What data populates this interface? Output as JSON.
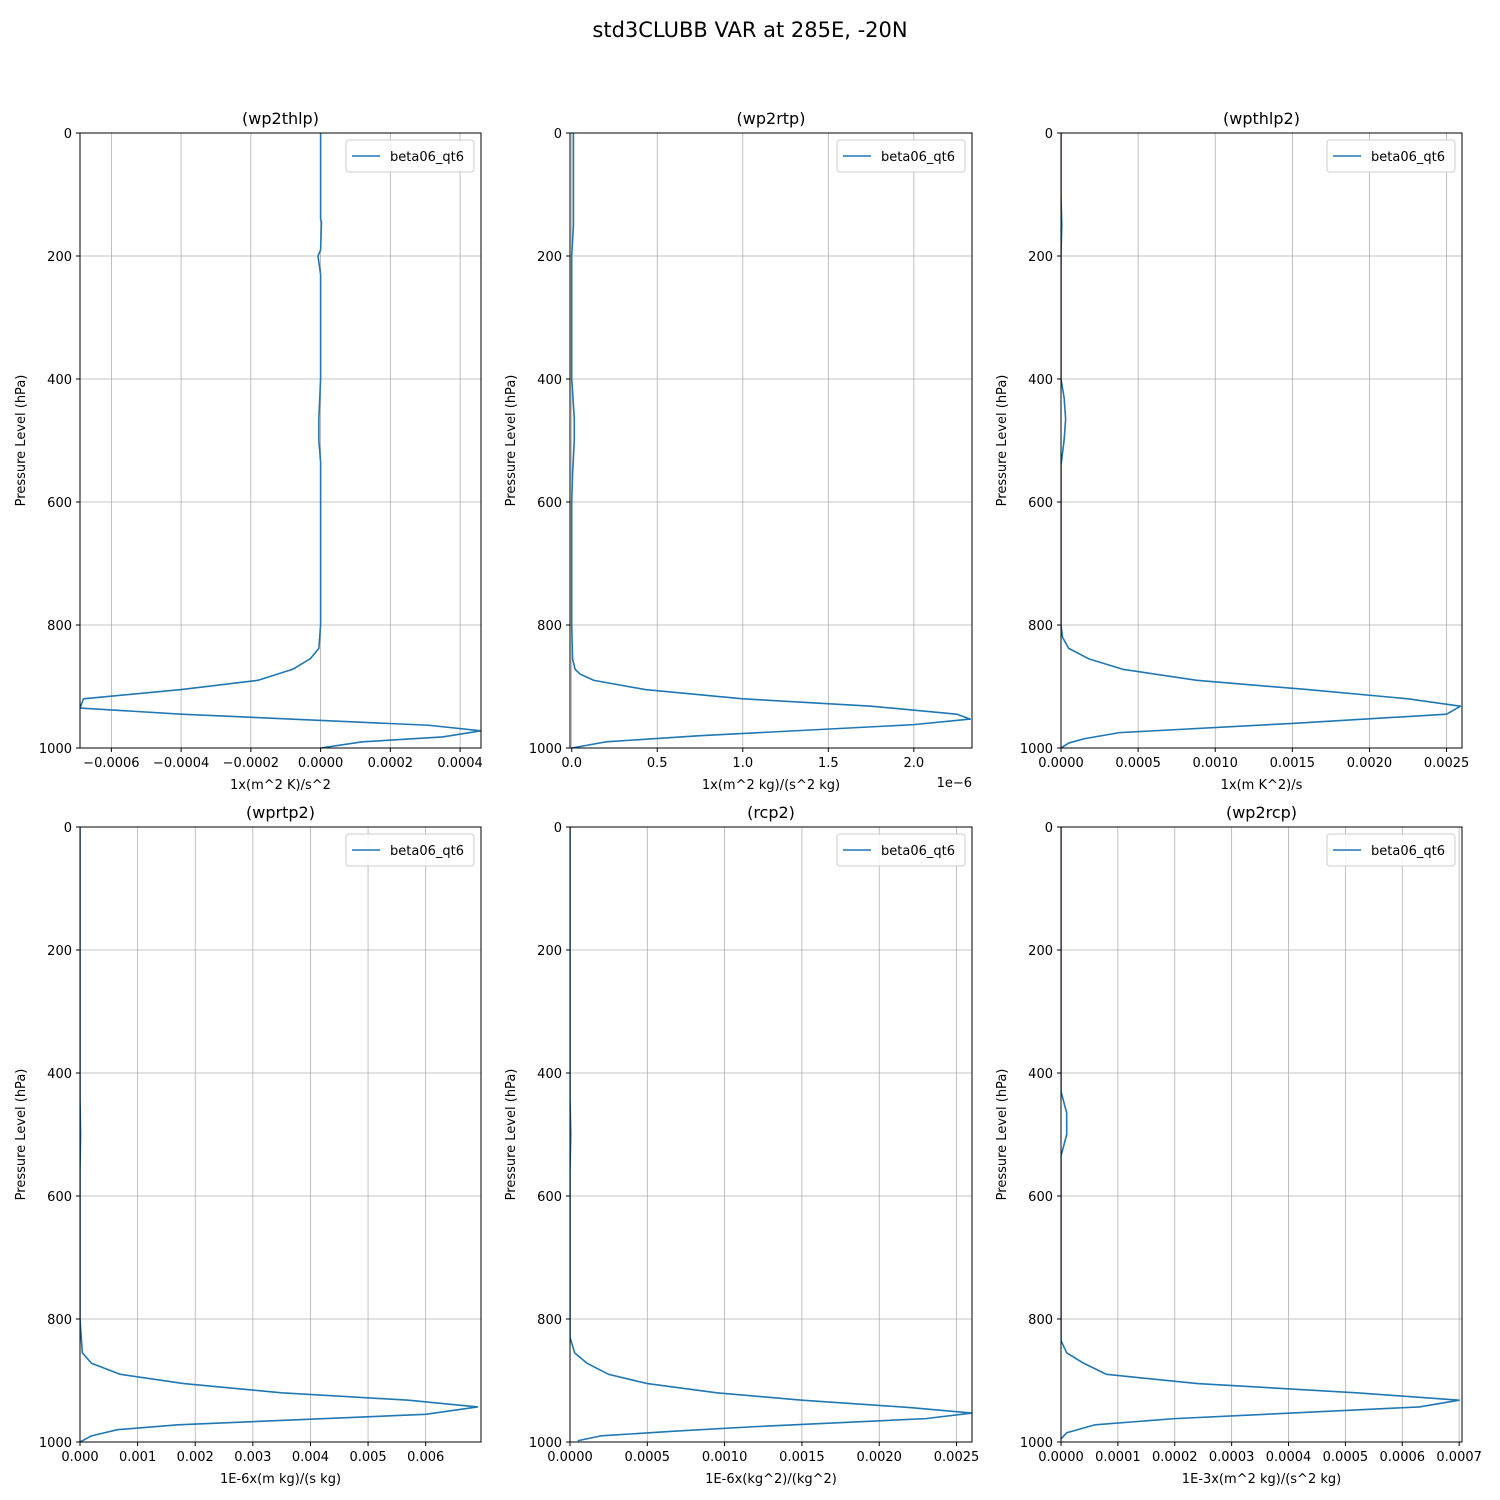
{
  "title": "std3CLUBB VAR at 285E, -20N",
  "chart_data": [
    {
      "type": "line",
      "title": "(wp2thlp)",
      "xlabel": "1x(m^2 K)/s^2",
      "ylabel": "Pressure Level (hPa)",
      "xlim": [
        -0.00069,
        0.00046
      ],
      "ylim": [
        1000,
        0
      ],
      "x_ticks": [
        -0.0006,
        -0.0004,
        -0.0002,
        0.0,
        0.0002,
        0.0004
      ],
      "x_tick_labels": [
        "−0.0006",
        "−0.0004",
        "−0.0002",
        "0.0000",
        "0.0002",
        "0.0004"
      ],
      "y_ticks": [
        0,
        200,
        400,
        600,
        800,
        1000
      ],
      "y_tick_labels": [
        "0",
        "200",
        "400",
        "600",
        "800",
        "1000"
      ],
      "offset_text": "",
      "grid": true,
      "legend": "upper right",
      "series": [
        {
          "name": "beta06_qt6",
          "color": "#1f77b4",
          "x": [
            0.0,
            0.0,
            2.5e-06,
            0.0,
            -7.5e-06,
            0.0,
            0.0,
            0.0,
            -5e-06,
            -5e-06,
            0.0,
            0.0,
            0.0,
            -5e-06,
            -3e-05,
            -8e-05,
            -0.00018,
            -0.0004,
            -0.00068,
            -0.00069,
            -0.0004,
            0.00031,
            0.00046,
            0.00035,
            0.00012,
            0.0
          ],
          "y": [
            0,
            140,
            145,
            190,
            200,
            230,
            300,
            400,
            465,
            500,
            535,
            600,
            800,
            838,
            855,
            872,
            890,
            905,
            920,
            935,
            945,
            963,
            972,
            982,
            990,
            1000
          ]
        }
      ]
    },
    {
      "type": "line",
      "title": "(wp2rtp)",
      "xlabel": "1x(m^2 kg)/(s^2 kg)",
      "ylabel": "Pressure Level (hPa)",
      "xlim": [
        -1e-08,
        2.34e-06
      ],
      "ylim": [
        1000,
        0
      ],
      "x_ticks": [
        0.0,
        5e-07,
        1e-06,
        1.5e-06,
        2e-06
      ],
      "x_tick_labels": [
        "0.0",
        "0.5",
        "1.0",
        "1.5",
        "2.0"
      ],
      "y_ticks": [
        0,
        200,
        400,
        600,
        800,
        1000
      ],
      "y_tick_labels": [
        "0",
        "200",
        "400",
        "600",
        "800",
        "1000"
      ],
      "offset_text": "1e−6",
      "grid": true,
      "legend": "upper right",
      "series": [
        {
          "name": "beta06_qt6",
          "color": "#1f77b4",
          "x": [
            1e-08,
            1e-08,
            0.0,
            0.0,
            5e-09,
            1.5e-08,
            1.5e-08,
            5e-09,
            0.0,
            0.0,
            5e-09,
            2e-08,
            5e-08,
            1.3e-07,
            4.3e-07,
            1e-06,
            1.75e-06,
            2.25e-06,
            2.33e-06,
            2e-06,
            7.5e-07,
            2e-07,
            0.0
          ],
          "y": [
            0,
            150,
            200,
            400,
            420,
            465,
            500,
            555,
            600,
            800,
            855,
            872,
            880,
            890,
            905,
            920,
            932,
            945,
            953,
            962,
            980,
            990,
            1000
          ]
        }
      ]
    },
    {
      "type": "line",
      "title": "(wpthlp2)",
      "xlabel": "1x(m K^2)/s",
      "ylabel": "Pressure Level (hPa)",
      "xlim": [
        0.0,
        0.0026
      ],
      "ylim": [
        1000,
        0
      ],
      "x_ticks": [
        0.0,
        0.0005,
        0.001,
        0.0015,
        0.002,
        0.0025
      ],
      "x_tick_labels": [
        "0.0000",
        "0.0005",
        "0.0010",
        "0.0015",
        "0.0020",
        "0.0025"
      ],
      "y_ticks": [
        0,
        200,
        400,
        600,
        800,
        1000
      ],
      "y_tick_labels": [
        "0",
        "200",
        "400",
        "600",
        "800",
        "1000"
      ],
      "offset_text": "",
      "grid": true,
      "legend": "upper right",
      "series": [
        {
          "name": "beta06_qt6",
          "color": "#1f77b4",
          "x": [
            0.0,
            0.0,
            5e-06,
            0.0,
            0.0,
            2e-05,
            3e-05,
            2e-05,
            0.0,
            0.0,
            1e-05,
            5e-05,
            0.00018,
            0.0004,
            0.00088,
            0.0016,
            0.00225,
            0.00259,
            0.0025,
            0.0015,
            0.00038,
            0.00015,
            5e-05,
            0.0
          ],
          "y": [
            0,
            100,
            150,
            200,
            400,
            430,
            465,
            500,
            540,
            800,
            820,
            838,
            855,
            872,
            890,
            905,
            920,
            932,
            945,
            960,
            975,
            985,
            992,
            1000
          ]
        }
      ]
    },
    {
      "type": "line",
      "title": "(wprtp2)",
      "xlabel": "1E-6x(m kg)/(s kg)",
      "ylabel": "Pressure Level (hPa)",
      "xlim": [
        0.0,
        0.00696
      ],
      "ylim": [
        1000,
        0
      ],
      "x_ticks": [
        0.0,
        0.001,
        0.002,
        0.003,
        0.004,
        0.005,
        0.006
      ],
      "x_tick_labels": [
        "0.000",
        "0.001",
        "0.002",
        "0.003",
        "0.004",
        "0.005",
        "0.006"
      ],
      "y_ticks": [
        0,
        200,
        400,
        600,
        800,
        1000
      ],
      "y_tick_labels": [
        "0",
        "200",
        "400",
        "600",
        "800",
        "1000"
      ],
      "offset_text": "",
      "grid": true,
      "legend": "upper right",
      "series": [
        {
          "name": "beta06_qt6",
          "color": "#1f77b4",
          "x": [
            0.0,
            0.0,
            1e-05,
            0.0,
            0.0,
            4e-05,
            0.0002,
            0.0007,
            0.0018,
            0.0035,
            0.0057,
            0.0069,
            0.006,
            0.0017,
            0.00065,
            0.0002,
            0.0
          ],
          "y": [
            0,
            440,
            500,
            560,
            800,
            855,
            872,
            890,
            905,
            920,
            932,
            943,
            955,
            972,
            980,
            990,
            1000
          ]
        }
      ]
    },
    {
      "type": "line",
      "title": "(rcp2)",
      "xlabel": "1E-6x(kg^2)/(kg^2)",
      "ylabel": "Pressure Level (hPa)",
      "xlim": [
        0.0,
        0.0026
      ],
      "ylim": [
        1000,
        0
      ],
      "x_ticks": [
        0.0,
        0.0005,
        0.001,
        0.0015,
        0.002,
        0.0025
      ],
      "x_tick_labels": [
        "0.0000",
        "0.0005",
        "0.0010",
        "0.0015",
        "0.0020",
        "0.0025"
      ],
      "y_ticks": [
        0,
        200,
        400,
        600,
        800,
        1000
      ],
      "y_tick_labels": [
        "0",
        "200",
        "400",
        "600",
        "800",
        "1000"
      ],
      "offset_text": "",
      "grid": true,
      "legend": "upper right",
      "series": [
        {
          "name": "beta06_qt6",
          "color": "#1f77b4",
          "x": [
            0.0,
            0.0,
            5e-06,
            0.0,
            0.0,
            3e-05,
            0.00011,
            0.00025,
            0.0005,
            0.00095,
            0.0015,
            0.0022,
            0.0026,
            0.0023,
            0.0012,
            0.0007,
            0.0002,
            5e-05
          ],
          "y": [
            0,
            440,
            500,
            560,
            830,
            855,
            872,
            890,
            905,
            920,
            932,
            944,
            953,
            962,
            975,
            982,
            990,
            998
          ]
        }
      ]
    },
    {
      "type": "line",
      "title": "(wp2rcp)",
      "xlabel": "1E-3x(m^2 kg)/(s^2 kg)",
      "ylabel": "Pressure Level (hPa)",
      "xlim": [
        0.0,
        0.000705
      ],
      "ylim": [
        1000,
        0
      ],
      "x_ticks": [
        0.0,
        0.0001,
        0.0002,
        0.0003,
        0.0004,
        0.0005,
        0.0006,
        0.0007
      ],
      "x_tick_labels": [
        "0.0000",
        "0.0001",
        "0.0002",
        "0.0003",
        "0.0004",
        "0.0005",
        "0.0006",
        "0.0007"
      ],
      "y_ticks": [
        0,
        200,
        400,
        600,
        800,
        1000
      ],
      "y_tick_labels": [
        "0",
        "200",
        "400",
        "600",
        "800",
        "1000"
      ],
      "offset_text": "",
      "grid": true,
      "legend": "upper right",
      "series": [
        {
          "name": "beta06_qt6",
          "color": "#1f77b4",
          "x": [
            0.0,
            0.0,
            0.0,
            1e-05,
            1e-05,
            0.0,
            0.0,
            0.0,
            1e-05,
            4e-05,
            8e-05,
            0.00024,
            0.00052,
            0.0007,
            0.00063,
            0.0002,
            6e-05,
            1e-05,
            0.0
          ],
          "y": [
            0,
            400,
            430,
            465,
            500,
            535,
            600,
            835,
            855,
            872,
            890,
            905,
            920,
            932,
            943,
            962,
            972,
            985,
            995
          ]
        }
      ]
    }
  ]
}
